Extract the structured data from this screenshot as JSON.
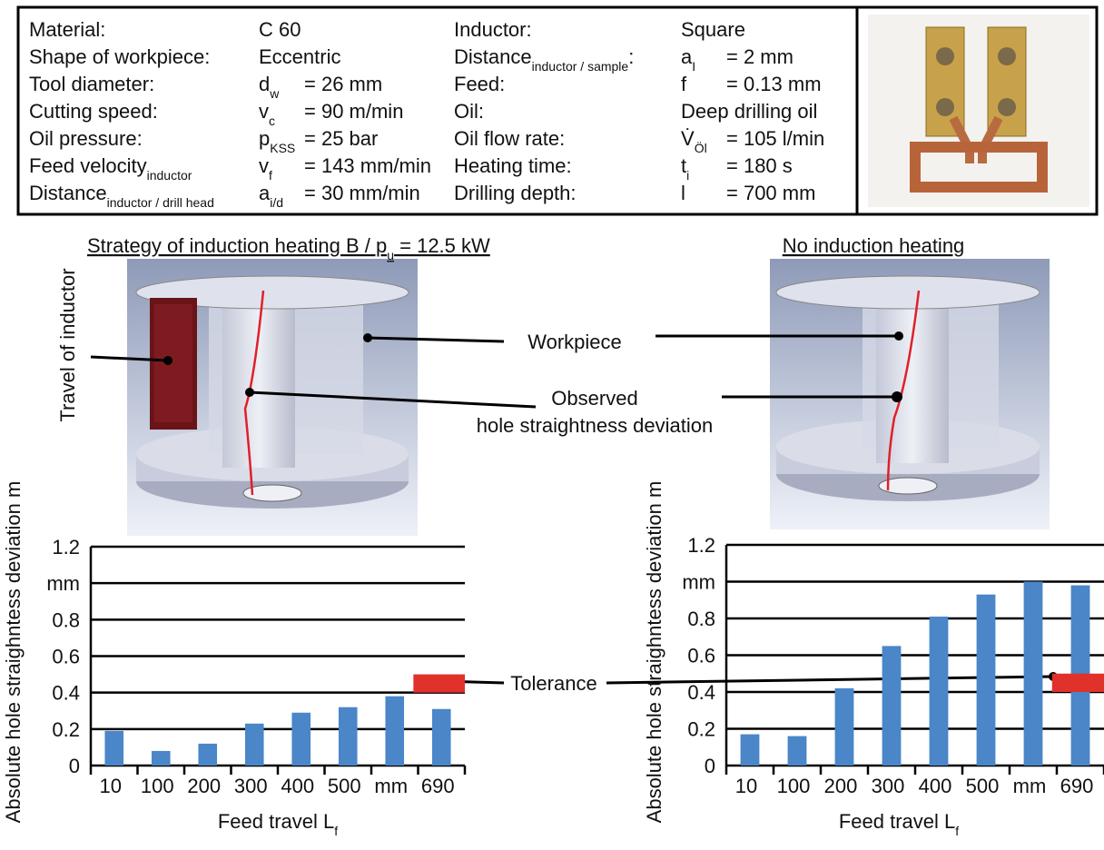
{
  "parameters": {
    "left": [
      {
        "label": "Material:",
        "value": "C 60"
      },
      {
        "label": "Shape of workpiece:",
        "value": "Eccentric"
      },
      {
        "label": "Tool diameter:",
        "symbol": "d",
        "symbol_sub": "w",
        "value": "=  26 mm"
      },
      {
        "label": "Cutting speed:",
        "symbol": "v",
        "symbol_sub": "c",
        "value": "= 90 m/min"
      },
      {
        "label": "Oil pressure:",
        "symbol": "p",
        "symbol_sub": "KSS",
        "value": "= 25 bar"
      },
      {
        "label": "Feed velocity",
        "label_sub": "inductor",
        "symbol": "v",
        "symbol_sub": "f",
        "value": "= 143 mm/min"
      },
      {
        "label": "Distance",
        "label_sub": "inductor / drill head",
        "symbol": "a",
        "symbol_sub": "i/d",
        "value": "= 30 mm/min"
      }
    ],
    "right": [
      {
        "label": "Inductor:",
        "value": "Square"
      },
      {
        "label": "Distance",
        "label_sub": "inductor / sample",
        "label_tail": ":",
        "symbol": "a",
        "symbol_sub": "I",
        "value": "= 2 mm"
      },
      {
        "label": "Feed:",
        "symbol": "f",
        "value": "= 0.13 mm"
      },
      {
        "label": "Oil:",
        "value": "Deep drilling oil"
      },
      {
        "label": "Oil flow rate:",
        "symbol": "V̇",
        "symbol_sub": "Öl",
        "value": "= 105 l/min"
      },
      {
        "label": "Heating time:",
        "symbol": "t",
        "symbol_sub": "i",
        "value": "= 180 s"
      },
      {
        "label": "Drilling depth:",
        "symbol": "l",
        "value": "= 700 mm"
      }
    ]
  },
  "heading_left": {
    "text": "Strategy of induction heating B / p",
    "sub": "u",
    "tail": " = 12.5 kW"
  },
  "heading_right": {
    "text": "No induction heating"
  },
  "annotations": {
    "travel": "Travel of inductor",
    "workpiece": "Workpiece",
    "observed_1": "Observed",
    "observed_2": "hole straightness deviation",
    "tolerance": "Tolerance"
  },
  "chart_data": [
    {
      "type": "bar",
      "categories": [
        "10",
        "100",
        "200",
        "300",
        "400",
        "500",
        "mm",
        "690"
      ],
      "values": [
        0.19,
        0.08,
        0.12,
        0.23,
        0.29,
        0.32,
        0.38,
        0.31
      ],
      "color": "#4a86c8",
      "tolerance": [
        0.4,
        0.5
      ],
      "tolerance_color": "#e0312a",
      "ylim": [
        0,
        1.2
      ],
      "yticks": [
        0,
        0.2,
        0.4,
        0.6,
        0.8,
        {
          "value": 1,
          "label": "mm"
        },
        1.2
      ],
      "grid": true,
      "y_label": "Absolute hole straighntess deviation m",
      "x_label": "Feed travel L",
      "x_label_sub": "f"
    },
    {
      "type": "bar",
      "categories": [
        "10",
        "100",
        "200",
        "300",
        "400",
        "500",
        "mm",
        "690"
      ],
      "values": [
        0.17,
        0.16,
        0.42,
        0.65,
        0.81,
        0.93,
        1.0,
        0.98
      ],
      "color": "#4a86c8",
      "tolerance": [
        0.4,
        0.5
      ],
      "tolerance_color": "#e0312a",
      "ylim": [
        0,
        1.2
      ],
      "yticks": [
        0,
        0.2,
        0.4,
        0.6,
        0.8,
        {
          "value": 1,
          "label": "mm"
        },
        1.2
      ],
      "grid": true,
      "y_label": "Absolute hole straighntess deviation m",
      "x_label": "Feed travel L",
      "x_label_sub": "f"
    }
  ]
}
